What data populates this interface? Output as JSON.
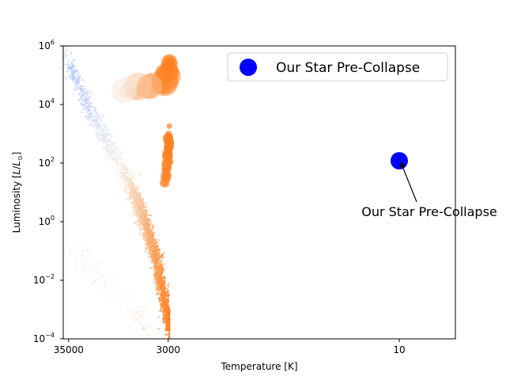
{
  "chart_data": {
    "type": "scatter",
    "title": "",
    "xlabel": "Temperature [K]",
    "ylabel": "Luminosity [L/L☉]",
    "ylabel_parts": {
      "prefix": "Luminosity [",
      "L": "L",
      "slash": "/",
      "Lsun": "L",
      "sun": "⊙",
      "suffix": "]"
    },
    "x_scale": "log",
    "x_inverted": true,
    "xlim": [
      40000,
      2.5
    ],
    "x_ticks": [
      35000,
      3000,
      10
    ],
    "x_tick_labels": [
      "35000",
      "3000",
      "10"
    ],
    "y_scale": "log",
    "ylim": [
      0.0001,
      1000000
    ],
    "y_ticks": [
      0.0001,
      0.01,
      1,
      100,
      10000,
      1000000
    ],
    "y_tick_labels": [
      {
        "base": "10",
        "exp": "−4"
      },
      {
        "base": "10",
        "exp": "−2"
      },
      {
        "base": "10",
        "exp": "0"
      },
      {
        "base": "10",
        "exp": "2"
      },
      {
        "base": "10",
        "exp": "4"
      },
      {
        "base": "10",
        "exp": "6"
      }
    ],
    "grid": false,
    "legend": {
      "placement": "top-right",
      "entries": [
        {
          "label": "Our Star Pre-Collapse",
          "color": "#0000ff"
        }
      ]
    },
    "colors": {
      "hot": "#a8c4ff",
      "mid": "#f7f3f0",
      "cool": "#ff7f1e",
      "highlight": "#0000ff"
    },
    "highlight_point": {
      "name": "Our Star Pre-Collapse",
      "x": 10,
      "y": 120,
      "color": "#0000ff"
    },
    "annotation": {
      "text": "Our Star Pre-Collapse",
      "target": {
        "x": 10,
        "y": 120
      }
    },
    "series": [
      {
        "group": "main-sequence",
        "description_points": [
          [
            40000,
            600000
          ],
          [
            30000,
            100000
          ],
          [
            20000,
            5000
          ],
          [
            12000,
            300
          ],
          [
            8000,
            20
          ],
          [
            6000,
            3
          ],
          [
            5000,
            0.5
          ],
          [
            4000,
            0.05
          ],
          [
            3500,
            0.005
          ],
          [
            2900,
            0.0002
          ]
        ]
      },
      {
        "group": "giants",
        "description_points": [
          [
            3200,
            30
          ],
          [
            3100,
            80
          ],
          [
            3000,
            200
          ],
          [
            2950,
            500
          ],
          [
            2900,
            1000
          ]
        ]
      },
      {
        "group": "supergiants",
        "description_points": [
          [
            9000,
            30000
          ],
          [
            7000,
            25000
          ],
          [
            5000,
            40000
          ],
          [
            3500,
            50000
          ],
          [
            3000,
            150000
          ],
          [
            2950,
            250000
          ]
        ]
      },
      {
        "group": "white-dwarfs",
        "description_points": [
          [
            30000,
            0.1
          ],
          [
            20000,
            0.03
          ],
          [
            15000,
            0.01
          ],
          [
            10000,
            0.003
          ],
          [
            7000,
            0.0008
          ],
          [
            5000,
            0.0002
          ]
        ]
      }
    ]
  }
}
